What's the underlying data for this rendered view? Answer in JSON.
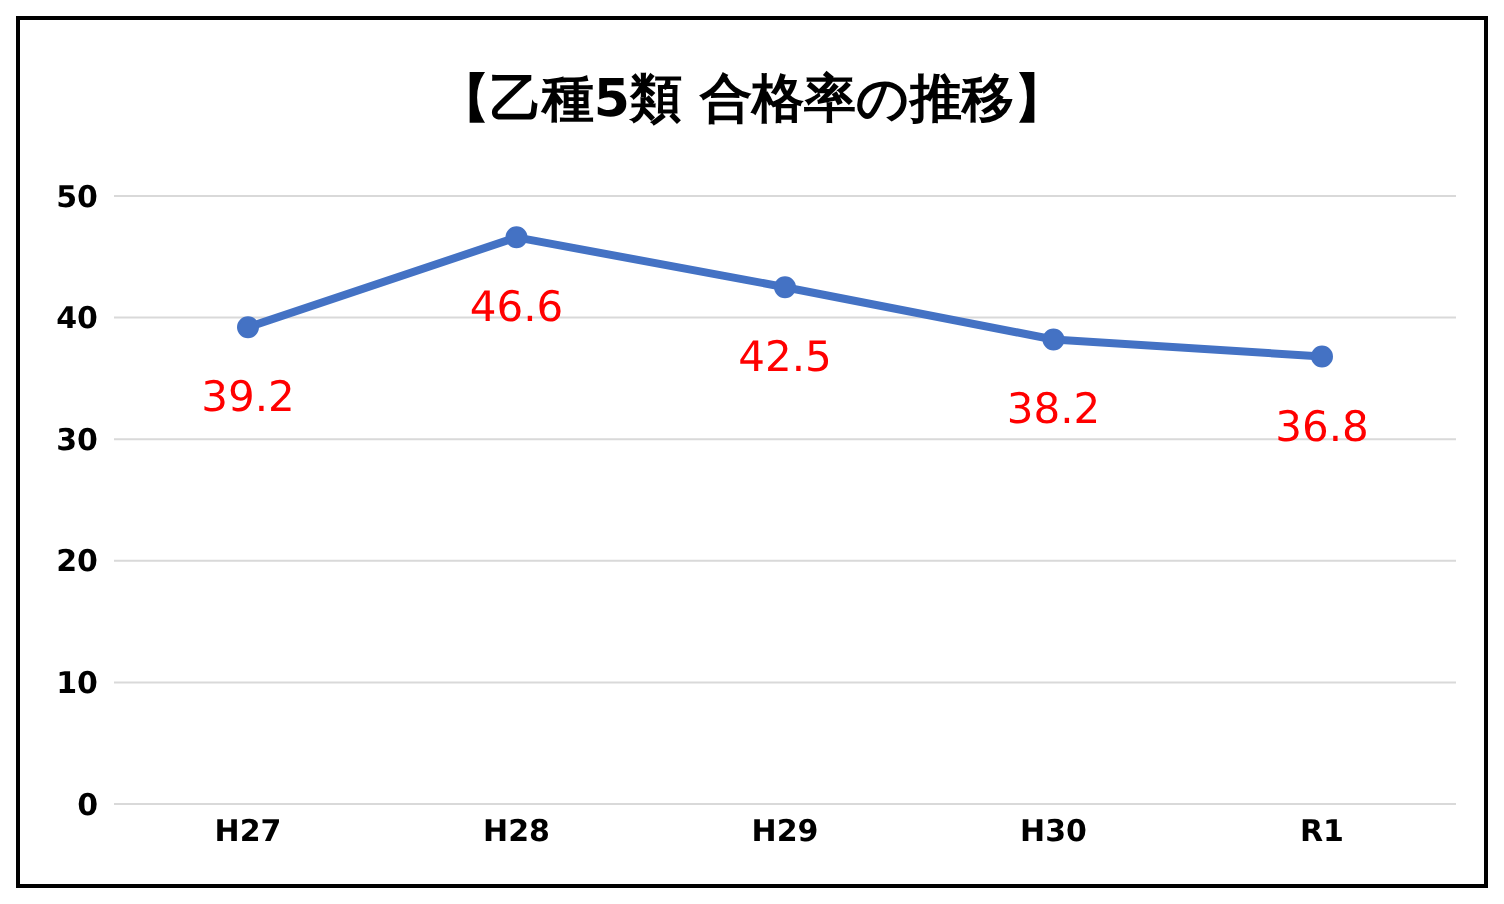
{
  "chart_data": {
    "type": "line",
    "title": "【乙種5類 合格率の推移】",
    "categories": [
      "H27",
      "H28",
      "H29",
      "H30",
      "R1"
    ],
    "values": [
      39.2,
      46.6,
      42.5,
      38.2,
      36.8
    ],
    "color": "#4472c4",
    "ylim": [
      0,
      50
    ],
    "yticks": [
      0,
      10,
      20,
      30,
      40,
      50
    ],
    "grid": "y",
    "marker": "circle",
    "line_style": "solid",
    "data_labels": true
  }
}
